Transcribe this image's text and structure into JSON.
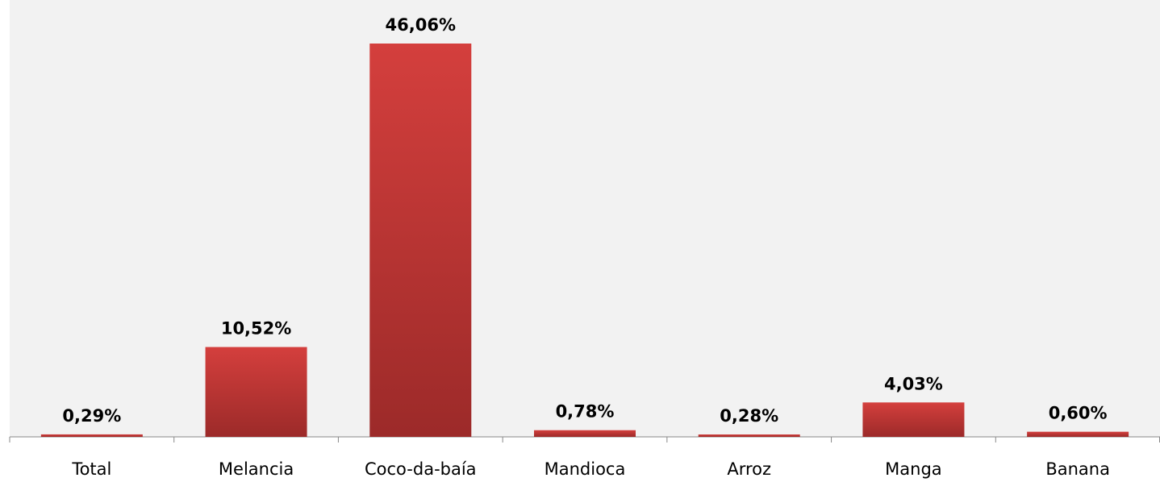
{
  "chart_data": {
    "type": "bar",
    "categories": [
      "Total",
      "Melancia",
      "Coco-da-baía",
      "Mandioca",
      "Arroz",
      "Manga",
      "Banana"
    ],
    "values": [
      0.29,
      10.52,
      46.06,
      0.78,
      0.28,
      4.03,
      0.6
    ],
    "value_labels": [
      "0,29%",
      "10,52%",
      "46,06%",
      "0,78%",
      "0,28%",
      "4,03%",
      "0,60%"
    ],
    "color": "#c0393a"
  }
}
